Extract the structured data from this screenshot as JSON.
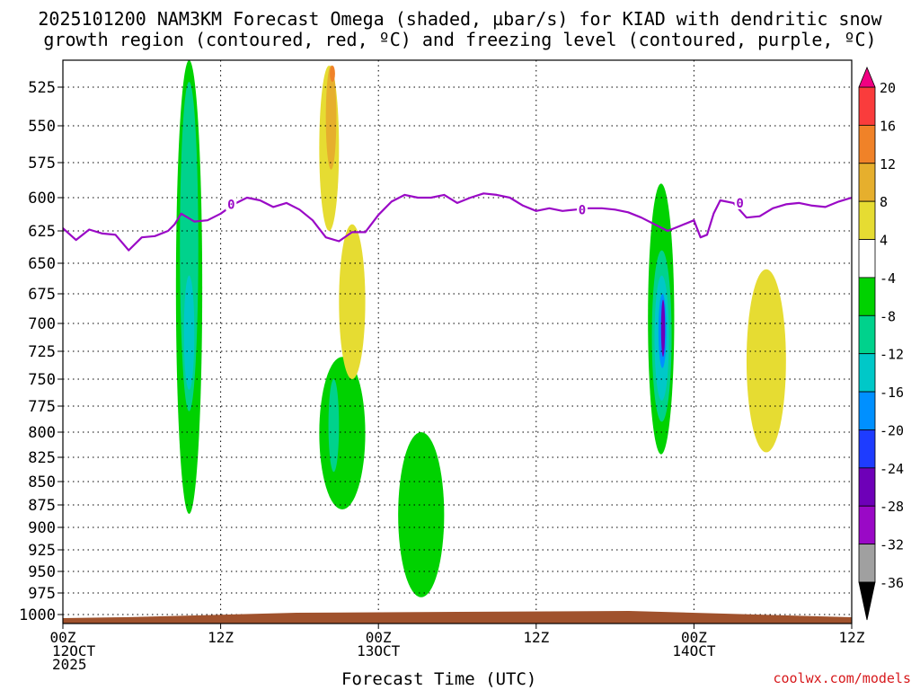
{
  "title_line1": "2025101200 NAM3KM Forecast Omega (shaded, µbar/s) for KIAD with dendritic snow",
  "title_line2": "growth region (contoured, red, ºC) and freezing level (contoured, purple, ºC)",
  "xlabel": "Forecast Time (UTC)",
  "credit": "coolwx.com/models",
  "chart_data": {
    "type": "heatmap",
    "title": "2025101200 NAM3KM Forecast Omega (shaded, µbar/s) for KIAD with dendritic snow growth region (contoured, red, ºC) and freezing level (contoured, purple, ºC)",
    "xlabel": "Forecast Time (UTC)",
    "ylabel": "",
    "x_hours_range": [
      0,
      60
    ],
    "x_ticks": [
      {
        "hour": 0,
        "lines": [
          "00Z",
          "12OCT",
          "2025"
        ]
      },
      {
        "hour": 12,
        "lines": [
          "12Z"
        ]
      },
      {
        "hour": 24,
        "lines": [
          "00Z",
          "13OCT"
        ]
      },
      {
        "hour": 36,
        "lines": [
          "12Z"
        ]
      },
      {
        "hour": 48,
        "lines": [
          "00Z",
          "14OCT"
        ]
      },
      {
        "hour": 60,
        "lines": [
          "12Z"
        ]
      }
    ],
    "y_levels_hpa": [
      525,
      550,
      575,
      600,
      625,
      650,
      675,
      700,
      725,
      750,
      775,
      800,
      825,
      850,
      875,
      900,
      925,
      950,
      975,
      1000
    ],
    "y_range_hpa": [
      500,
      1010
    ],
    "grid": true,
    "colorbar": {
      "levels": [
        -36,
        -32,
        -28,
        -24,
        -20,
        -16,
        -12,
        -8,
        -4,
        4,
        8,
        12,
        16,
        20
      ],
      "colors": [
        "#000000",
        "#a0a0a0",
        "#9a09c6",
        "#6e00b8",
        "#1e3cff",
        "#0090ff",
        "#00c8c8",
        "#00d28c",
        "#00d200",
        "#ffffff",
        "#e6dc32",
        "#e6af2d",
        "#f08228",
        "#fa3c3c",
        "#f00082"
      ]
    },
    "freezing_level": {
      "color": "#9a09c6",
      "label": "0",
      "points": [
        [
          0,
          623
        ],
        [
          1,
          632
        ],
        [
          2,
          624
        ],
        [
          3,
          627
        ],
        [
          4,
          628
        ],
        [
          5,
          640
        ],
        [
          6,
          630
        ],
        [
          7,
          629
        ],
        [
          8,
          625
        ],
        [
          8.5,
          620
        ],
        [
          9,
          612
        ],
        [
          10,
          618
        ],
        [
          11,
          617
        ],
        [
          12,
          612
        ],
        [
          13,
          605
        ],
        [
          14,
          600
        ],
        [
          15,
          602
        ],
        [
          16,
          607
        ],
        [
          17,
          604
        ],
        [
          18,
          609
        ],
        [
          19,
          617
        ],
        [
          20,
          630
        ],
        [
          21,
          633
        ],
        [
          22,
          626
        ],
        [
          23,
          626
        ],
        [
          24,
          613
        ],
        [
          25,
          603
        ],
        [
          26,
          598
        ],
        [
          27,
          600
        ],
        [
          28,
          600
        ],
        [
          29,
          598
        ],
        [
          30,
          604
        ],
        [
          31,
          600
        ],
        [
          32,
          597
        ],
        [
          33,
          598
        ],
        [
          34,
          600
        ],
        [
          35,
          606
        ],
        [
          36,
          610
        ],
        [
          37,
          608
        ],
        [
          38,
          610
        ],
        [
          39,
          609
        ],
        [
          40,
          608
        ],
        [
          41,
          608
        ],
        [
          42,
          609
        ],
        [
          43,
          611
        ],
        [
          44,
          615
        ],
        [
          45,
          620
        ],
        [
          46,
          625
        ],
        [
          47,
          621
        ],
        [
          48,
          617
        ],
        [
          48.5,
          630
        ],
        [
          49,
          628
        ],
        [
          49.5,
          612
        ],
        [
          50,
          602
        ],
        [
          51,
          604
        ],
        [
          52,
          615
        ],
        [
          53,
          614
        ],
        [
          54,
          608
        ],
        [
          55,
          605
        ],
        [
          56,
          604
        ],
        [
          57,
          606
        ],
        [
          58,
          607
        ],
        [
          59,
          603
        ],
        [
          60,
          600
        ]
      ]
    },
    "omega_regions": [
      {
        "level": -4,
        "hours_range": [
          8.6,
          10.6
        ],
        "hpa_range": [
          500,
          885
        ]
      },
      {
        "level": -8,
        "hours_range": [
          8.9,
          10.3
        ],
        "hpa_range": [
          520,
          780
        ]
      },
      {
        "level": -12,
        "hours_range": [
          9.2,
          10.0
        ],
        "hpa_range": [
          660,
          760
        ]
      },
      {
        "level": -4,
        "hours_range": [
          44.5,
          46.5
        ],
        "hpa_range": [
          590,
          822
        ]
      },
      {
        "level": -8,
        "hours_range": [
          44.8,
          46.3
        ],
        "hpa_range": [
          640,
          790
        ]
      },
      {
        "level": -12,
        "hours_range": [
          45.0,
          46.1
        ],
        "hpa_range": [
          660,
          770
        ]
      },
      {
        "level": -16,
        "hours_range": [
          45.3,
          45.9
        ],
        "hpa_range": [
          675,
          740
        ]
      },
      {
        "level": -24,
        "hours_range": [
          45.5,
          45.8
        ],
        "hpa_range": [
          680,
          730
        ]
      },
      {
        "level": -4,
        "hours_range": [
          19.5,
          23.0
        ],
        "hpa_range": [
          730,
          880
        ]
      },
      {
        "level": -8,
        "hours_range": [
          20.2,
          21.0
        ],
        "hpa_range": [
          750,
          840
        ]
      },
      {
        "level": -4,
        "hours_range": [
          25.5,
          29.0
        ],
        "hpa_range": [
          800,
          980
        ]
      },
      {
        "level": 4,
        "hours_range": [
          19.5,
          21.0
        ],
        "hpa_range": [
          505,
          625
        ]
      },
      {
        "level": 8,
        "hours_range": [
          20.0,
          20.8
        ],
        "hpa_range": [
          505,
          580
        ]
      },
      {
        "level": 12,
        "hours_range": [
          20.3,
          20.7
        ],
        "hpa_range": [
          505,
          520
        ]
      },
      {
        "level": 4,
        "hours_range": [
          52.0,
          55.0
        ],
        "hpa_range": [
          655,
          820
        ]
      },
      {
        "level": 4,
        "hours_range": [
          21.0,
          23.0
        ],
        "hpa_range": [
          620,
          750
        ]
      }
    ]
  }
}
